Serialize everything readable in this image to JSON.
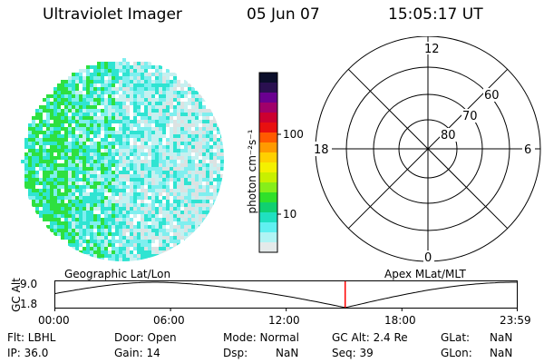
{
  "header": {
    "title": "Ultraviolet Imager",
    "date": "05 Jun 07",
    "time": "15:05:17 UT"
  },
  "colorbar": {
    "unit_label": "photon cm⁻²s⁻¹",
    "tick_labels": [
      "100",
      "10"
    ],
    "colors": [
      "#0b0e2a",
      "#2a1050",
      "#6a0090",
      "#a0006a",
      "#cc0030",
      "#e81010",
      "#ff5a00",
      "#ff9a00",
      "#ffd000",
      "#f4f000",
      "#c8f000",
      "#86ee1a",
      "#30e02a",
      "#10d070",
      "#20e0c0",
      "#60f0f0",
      "#b0f4f4",
      "#e4eaea"
    ]
  },
  "image": {
    "colors": {
      "green": "#2ee040",
      "teal": "#2fe4d2",
      "cyan": "#7fefef",
      "pale": "#c6f0f0",
      "grey": "#dce2e2"
    }
  },
  "polar": {
    "mlt_labels": [
      "12",
      "18",
      "6",
      "0"
    ],
    "lat_labels": [
      "60",
      "70",
      "80"
    ]
  },
  "timeline": {
    "left_label": "Geographic Lat/Lon",
    "right_label": "Apex  MLat/MLT",
    "axis_title": "GC Alt",
    "y_ticks": [
      "9.0",
      "1.8"
    ],
    "x_ticks": [
      "00:00",
      "06:00",
      "12:00",
      "18:00",
      "23:59"
    ],
    "marker_time": "15:05",
    "marker_color": "#ff0000"
  },
  "info": {
    "flt": "Flt: LBHL",
    "ip": "IP: 36.0",
    "door": "Door: Open",
    "gain": "Gain: 14",
    "mode": "Mode: Normal",
    "dsp_label": "Dsp:",
    "dsp_value": "NaN",
    "gcalt": "GC Alt: 2.4 Re",
    "seq": "Seq: 39",
    "glat_label": "GLat:",
    "glat_value": "NaN",
    "glon_label": "GLon:",
    "glon_value": "NaN"
  }
}
